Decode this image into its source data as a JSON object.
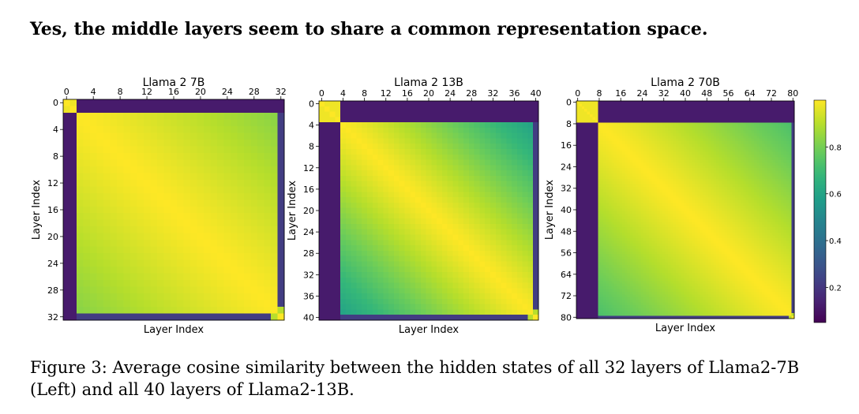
{
  "headline": "Yes, the middle layers seem to share a common representation space.",
  "caption": {
    "line1": "Figure 3: Average cosine similarity between the hidden states of all 32 layers of Llama2-7B",
    "line2": "(Left) and all 40 layers of Llama2-13B."
  },
  "chart_data": [
    {
      "type": "heatmap",
      "title": "Llama 2 7B",
      "xlabel": "Layer Index",
      "ylabel": "Layer Index",
      "layers": 32,
      "xticks": [
        0,
        4,
        8,
        12,
        16,
        20,
        24,
        28,
        32
      ],
      "yticks": [
        0,
        4,
        8,
        12,
        16,
        20,
        24,
        28,
        32
      ],
      "block_end": 1,
      "last_outlier": true,
      "decay": 0.18,
      "description": "similarity ~0.1 for layer 0 vs others and last layer vs others; ~0.95-1.0 among middle layers"
    },
    {
      "type": "heatmap",
      "title": "Llama 2 13B",
      "xlabel": "Layer Index",
      "ylabel": "Layer Index",
      "layers": 40,
      "xticks": [
        0,
        4,
        8,
        12,
        16,
        20,
        24,
        28,
        32,
        36,
        40
      ],
      "yticks": [
        0,
        4,
        8,
        12,
        16,
        20,
        24,
        28,
        32,
        36,
        40
      ],
      "block_end": 3,
      "last_outlier": true,
      "decay": 0.42
    },
    {
      "type": "heatmap",
      "title": "Llama 2 70B",
      "xlabel": "Layer Index",
      "ylabel": "Layer Index",
      "layers": 80,
      "xticks": [
        0,
        8,
        16,
        24,
        32,
        40,
        48,
        56,
        64,
        72,
        80
      ],
      "yticks": [
        0,
        8,
        16,
        24,
        32,
        40,
        48,
        56,
        64,
        72,
        80
      ],
      "block_end": 7,
      "last_outlier": true,
      "decay": 0.28
    }
  ],
  "colorbar": {
    "ticks": [
      "0.2",
      "0.4",
      "0.6",
      "0.8"
    ],
    "tick_values": [
      0.2,
      0.4,
      0.6,
      0.8
    ],
    "range": [
      0.05,
      1.0
    ],
    "colormap": "viridis"
  }
}
